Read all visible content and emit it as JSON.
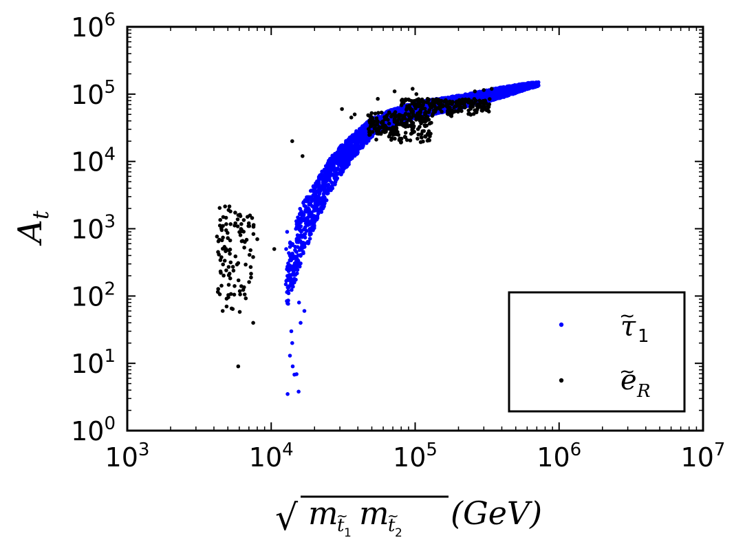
{
  "chart_data": {
    "type": "scatter",
    "title": "",
    "xlabel": "(GeV)",
    "xlabel_parts": {
      "radical": "√",
      "m": "m",
      "t": "t",
      "sub1": "1",
      "sub2": "2",
      "unit": "(GeV)"
    },
    "ylabel": "A_t",
    "ylabel_parts": {
      "main": "A",
      "sub": "t"
    },
    "x_scale": "log",
    "y_scale": "log",
    "xlim": [
      1000,
      10000000
    ],
    "ylim": [
      1,
      1000000
    ],
    "x_tick_labels": [
      {
        "base": "10",
        "exp": "3",
        "value": 1000
      },
      {
        "base": "10",
        "exp": "4",
        "value": 10000
      },
      {
        "base": "10",
        "exp": "5",
        "value": 100000
      },
      {
        "base": "10",
        "exp": "6",
        "value": 1000000
      },
      {
        "base": "10",
        "exp": "7",
        "value": 10000000
      }
    ],
    "y_tick_labels": [
      {
        "base": "10",
        "exp": "0",
        "value": 1
      },
      {
        "base": "10",
        "exp": "1",
        "value": 10
      },
      {
        "base": "10",
        "exp": "2",
        "value": 100
      },
      {
        "base": "10",
        "exp": "3",
        "value": 1000
      },
      {
        "base": "10",
        "exp": "4",
        "value": 10000
      },
      {
        "base": "10",
        "exp": "5",
        "value": 100000
      },
      {
        "base": "10",
        "exp": "6",
        "value": 1000000
      }
    ],
    "legend": {
      "placement": "lower-right",
      "entries": [
        {
          "key": "tau1",
          "symbol": "τ",
          "tilde": "~",
          "sub": "1"
        },
        {
          "key": "eR",
          "symbol": "e",
          "tilde": "~",
          "sub": "R"
        }
      ]
    },
    "series": [
      {
        "name": "stau_1",
        "label_key": "tau1",
        "color": "#0000ff",
        "band_x_range": [
          12600,
          720000
        ],
        "band_y_center_log10": [
          [
            12600,
            2.2
          ],
          [
            14000,
            2.5
          ],
          [
            16000,
            2.9
          ],
          [
            20000,
            3.35
          ],
          [
            25000,
            3.75
          ],
          [
            30000,
            4.0
          ],
          [
            40000,
            4.3
          ],
          [
            50000,
            4.5
          ],
          [
            70000,
            4.65
          ],
          [
            100000,
            4.76
          ],
          [
            150000,
            4.83
          ],
          [
            200000,
            4.88
          ],
          [
            300000,
            4.96
          ],
          [
            450000,
            5.05
          ],
          [
            600000,
            5.12
          ],
          [
            720000,
            5.15
          ]
        ],
        "band_half_width_log10": [
          [
            12600,
            0.45
          ],
          [
            16000,
            0.42
          ],
          [
            20000,
            0.33
          ],
          [
            30000,
            0.22
          ],
          [
            50000,
            0.14
          ],
          [
            100000,
            0.12
          ],
          [
            200000,
            0.1
          ],
          [
            400000,
            0.08
          ],
          [
            720000,
            0.03
          ]
        ],
        "outliers": [
          [
            13000,
            3.5
          ],
          [
            14500,
            6.8
          ],
          [
            15000,
            6.9
          ],
          [
            15500,
            3.8
          ],
          [
            13500,
            13
          ],
          [
            14000,
            20
          ],
          [
            13200,
            110
          ],
          [
            12700,
            500
          ],
          [
            12900,
            900
          ],
          [
            14100,
            9
          ],
          [
            13800,
            30
          ],
          [
            16000,
            40
          ],
          [
            17000,
            60
          ],
          [
            15600,
            80
          ]
        ]
      },
      {
        "name": "selectron_R",
        "label_key": "eR",
        "color": "#000000",
        "clusters": [
          {
            "x_range": [
              4200,
              7600
            ],
            "y_range": [
              40,
              2200
            ],
            "count": 110
          },
          {
            "x_range": [
              47000,
              130000
            ],
            "y_range": [
              18000,
              55000
            ],
            "count": 220
          },
          {
            "x_range": [
              80000,
              330000
            ],
            "y_range": [
              45000,
              85000
            ],
            "count": 220
          }
        ],
        "outliers": [
          [
            5900,
            9
          ],
          [
            8000,
            700
          ],
          [
            10500,
            500
          ],
          [
            14000,
            20000
          ],
          [
            16500,
            12000
          ],
          [
            31000,
            60000
          ],
          [
            38000,
            50000
          ],
          [
            55000,
            85000
          ],
          [
            72000,
            110000
          ],
          [
            96000,
            120000
          ],
          [
            102000,
            100000
          ],
          [
            260000,
            110000
          ],
          [
            300000,
            115000
          ],
          [
            340000,
            120000
          ],
          [
            36000,
            45000
          ],
          [
            4600,
            60
          ],
          [
            7500,
            40
          ],
          [
            6200,
            140
          ]
        ]
      }
    ]
  }
}
